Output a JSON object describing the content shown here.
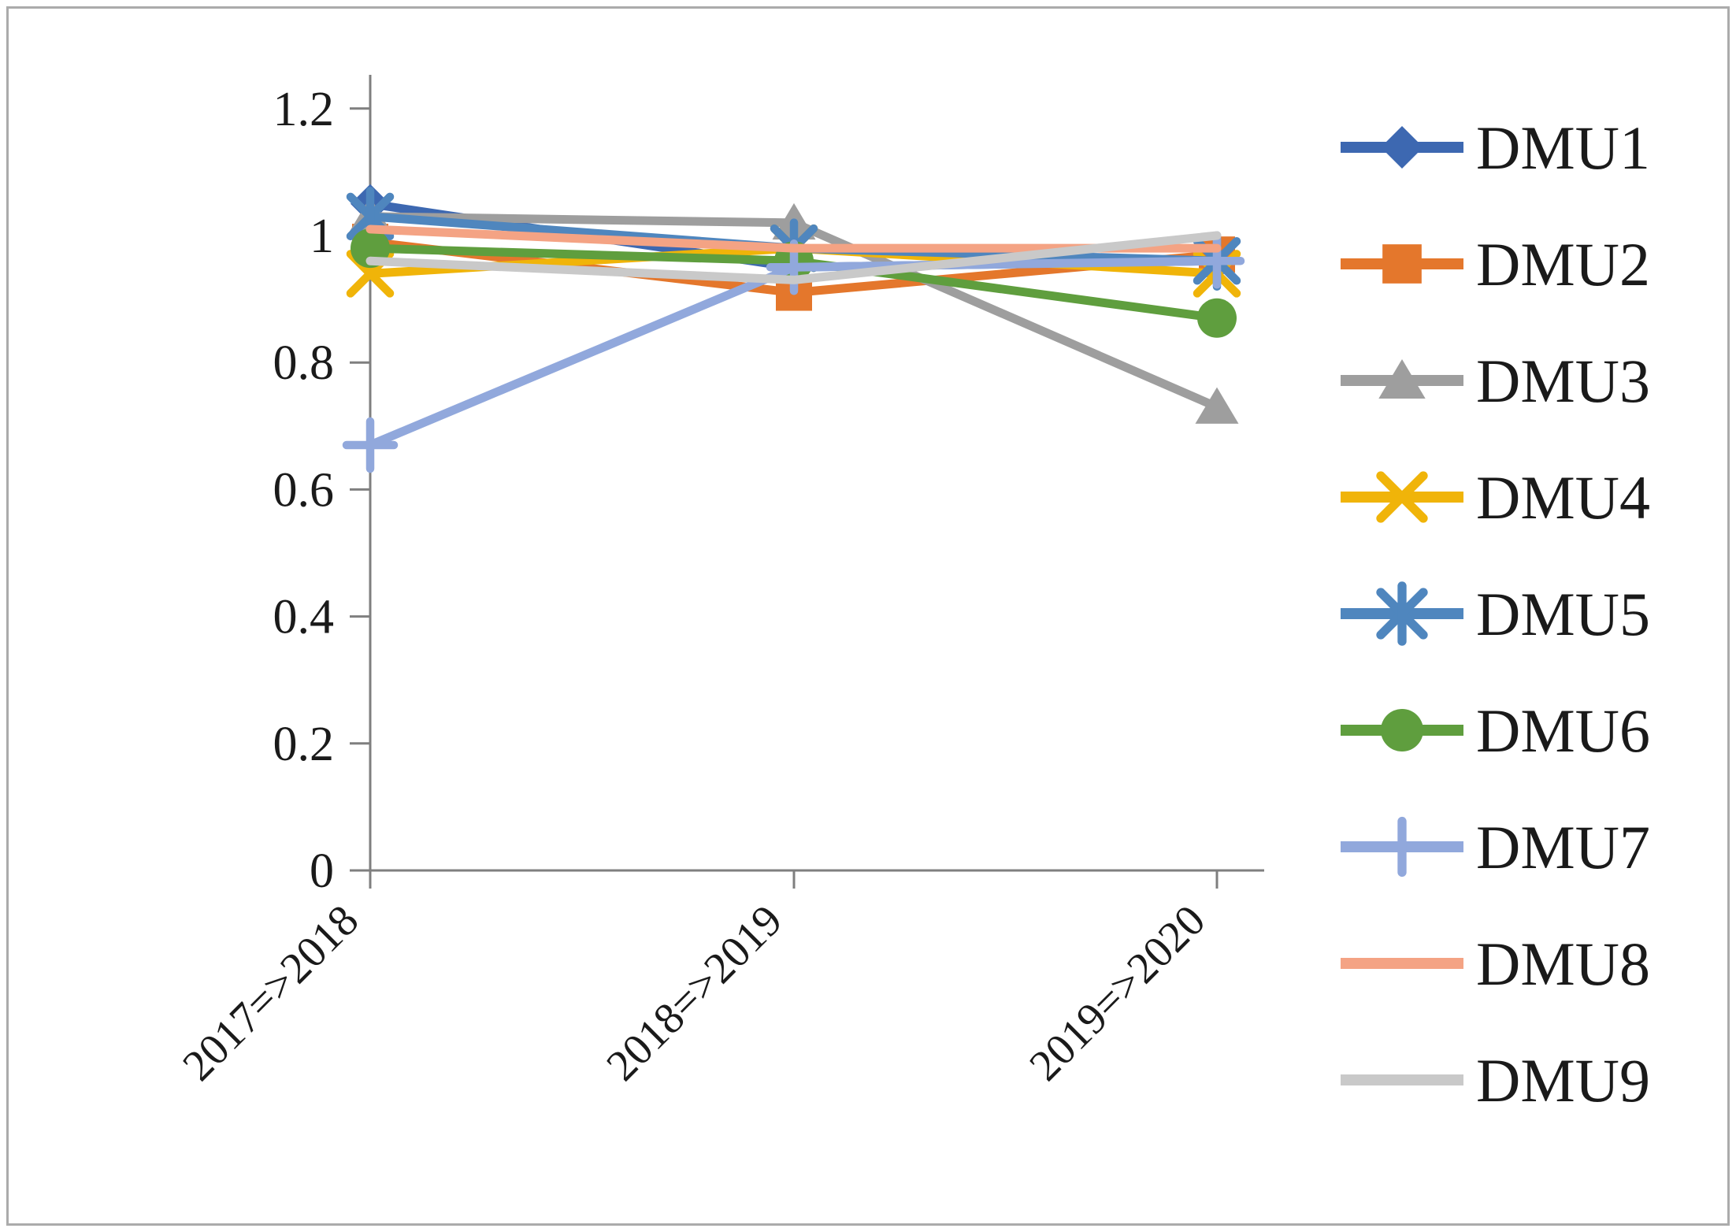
{
  "figure": {
    "background_color": "#ffffff",
    "border_color": "#ababab",
    "axis_color": "#7f7f7f",
    "text_color": "#1a1a1a"
  },
  "chart_data": {
    "type": "line",
    "title": "",
    "xlabel": "",
    "ylabel": "",
    "categories": [
      "2017=>2018",
      "2018=>2019",
      "2019=>2020"
    ],
    "series": [
      {
        "name": "DMU1",
        "color": "#3D68B1",
        "marker": "diamond",
        "values": [
          1.05,
          0.95,
          0.96
        ]
      },
      {
        "name": "DMU2",
        "color": "#E4772C",
        "marker": "square",
        "values": [
          0.99,
          0.91,
          0.97
        ]
      },
      {
        "name": "DMU3",
        "color": "#9E9E9E",
        "marker": "triangle",
        "values": [
          1.03,
          1.02,
          0.73
        ]
      },
      {
        "name": "DMU4",
        "color": "#F0B409",
        "marker": "x",
        "values": [
          0.94,
          0.98,
          0.94
        ]
      },
      {
        "name": "DMU5",
        "color": "#4F86BE",
        "marker": "asterisk",
        "values": [
          1.03,
          0.98,
          0.96
        ]
      },
      {
        "name": "DMU6",
        "color": "#5F9E3E",
        "marker": "circle",
        "values": [
          0.98,
          0.96,
          0.87
        ]
      },
      {
        "name": "DMU7",
        "color": "#91A8DC",
        "marker": "plus",
        "values": [
          0.67,
          0.95,
          0.96
        ]
      },
      {
        "name": "DMU8",
        "color": "#F4A384",
        "marker": "none",
        "values": [
          1.01,
          0.98,
          0.98
        ]
      },
      {
        "name": "DMU9",
        "color": "#C9C9C9",
        "marker": "none",
        "values": [
          0.96,
          0.93,
          1.0
        ]
      }
    ],
    "yticks": [
      0,
      0.2,
      0.4,
      0.6,
      0.8,
      1,
      1.2
    ],
    "ytick_labels": [
      "0",
      "0.2",
      "0.4",
      "0.6",
      "0.8",
      "1",
      "1.2"
    ],
    "ylim": [
      0,
      1.2
    ],
    "grid": false,
    "legend_position": "right",
    "legend_labels": [
      "DMU1",
      "DMU2",
      "DMU3",
      "DMU4",
      "DMU5",
      "DMU6",
      "DMU7",
      "DMU8",
      "DMU9"
    ]
  }
}
